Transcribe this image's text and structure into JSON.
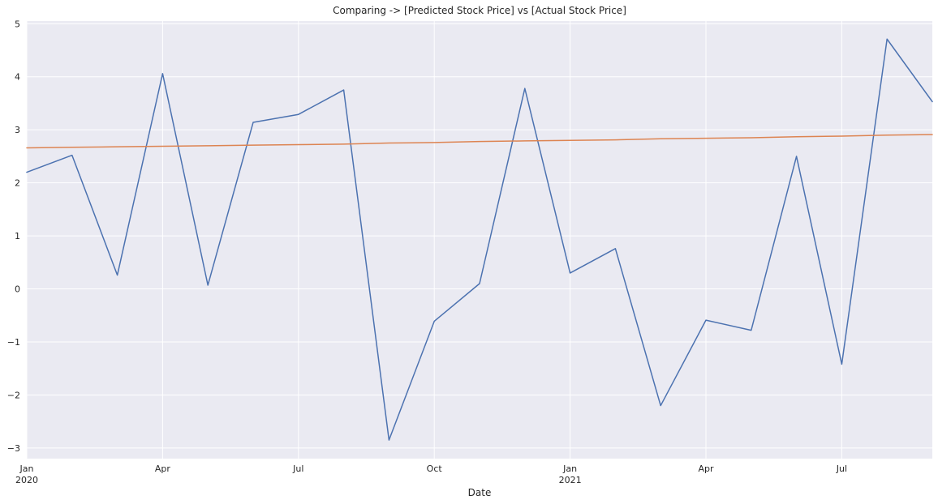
{
  "chart_data": {
    "type": "line",
    "title": "Comparing -> [Predicted Stock Price] vs [Actual Stock Price]",
    "xlabel": "Date",
    "ylabel": "",
    "x": [
      "2020-01",
      "2020-02",
      "2020-03",
      "2020-04",
      "2020-05",
      "2020-06",
      "2020-07",
      "2020-08",
      "2020-09",
      "2020-10",
      "2020-11",
      "2020-12",
      "2021-01",
      "2021-02",
      "2021-03",
      "2021-04",
      "2021-05",
      "2021-06",
      "2021-07",
      "2021-08",
      "2021-09"
    ],
    "xlim": [
      "2020-01",
      "2021-09"
    ],
    "ylim": [
      -3.2,
      5.05
    ],
    "yticks": [
      -3,
      -2,
      -1,
      0,
      1,
      2,
      3,
      4,
      5
    ],
    "ytick_labels": [
      "−3",
      "−2",
      "−1",
      "0",
      "1",
      "2",
      "3",
      "4",
      "5"
    ],
    "xticks": [
      {
        "x": "2020-01",
        "label": "Jan",
        "sublabel": "2020"
      },
      {
        "x": "2020-04",
        "label": "Apr",
        "sublabel": ""
      },
      {
        "x": "2020-07",
        "label": "Jul",
        "sublabel": ""
      },
      {
        "x": "2020-10",
        "label": "Oct",
        "sublabel": ""
      },
      {
        "x": "2021-01",
        "label": "Jan",
        "sublabel": "2021"
      },
      {
        "x": "2021-04",
        "label": "Apr",
        "sublabel": ""
      },
      {
        "x": "2021-07",
        "label": "Jul",
        "sublabel": ""
      }
    ],
    "grid": true,
    "legend": "none",
    "series": [
      {
        "color": "#4c72b0",
        "values": [
          2.2,
          2.52,
          0.26,
          4.06,
          0.07,
          3.14,
          3.29,
          3.75,
          -2.85,
          -0.61,
          0.1,
          3.78,
          0.3,
          0.76,
          -2.2,
          -0.59,
          -0.78,
          2.5,
          -1.42,
          4.71,
          3.53
        ]
      },
      {
        "color": "#dd8452",
        "values": [
          2.66,
          2.67,
          2.68,
          2.69,
          2.7,
          2.71,
          2.72,
          2.73,
          2.75,
          2.76,
          2.78,
          2.79,
          2.8,
          2.81,
          2.83,
          2.84,
          2.85,
          2.87,
          2.88,
          2.9,
          2.91
        ]
      }
    ],
    "colors": {
      "plot_background": "#eaeaf2",
      "grid": "#ffffff"
    }
  }
}
